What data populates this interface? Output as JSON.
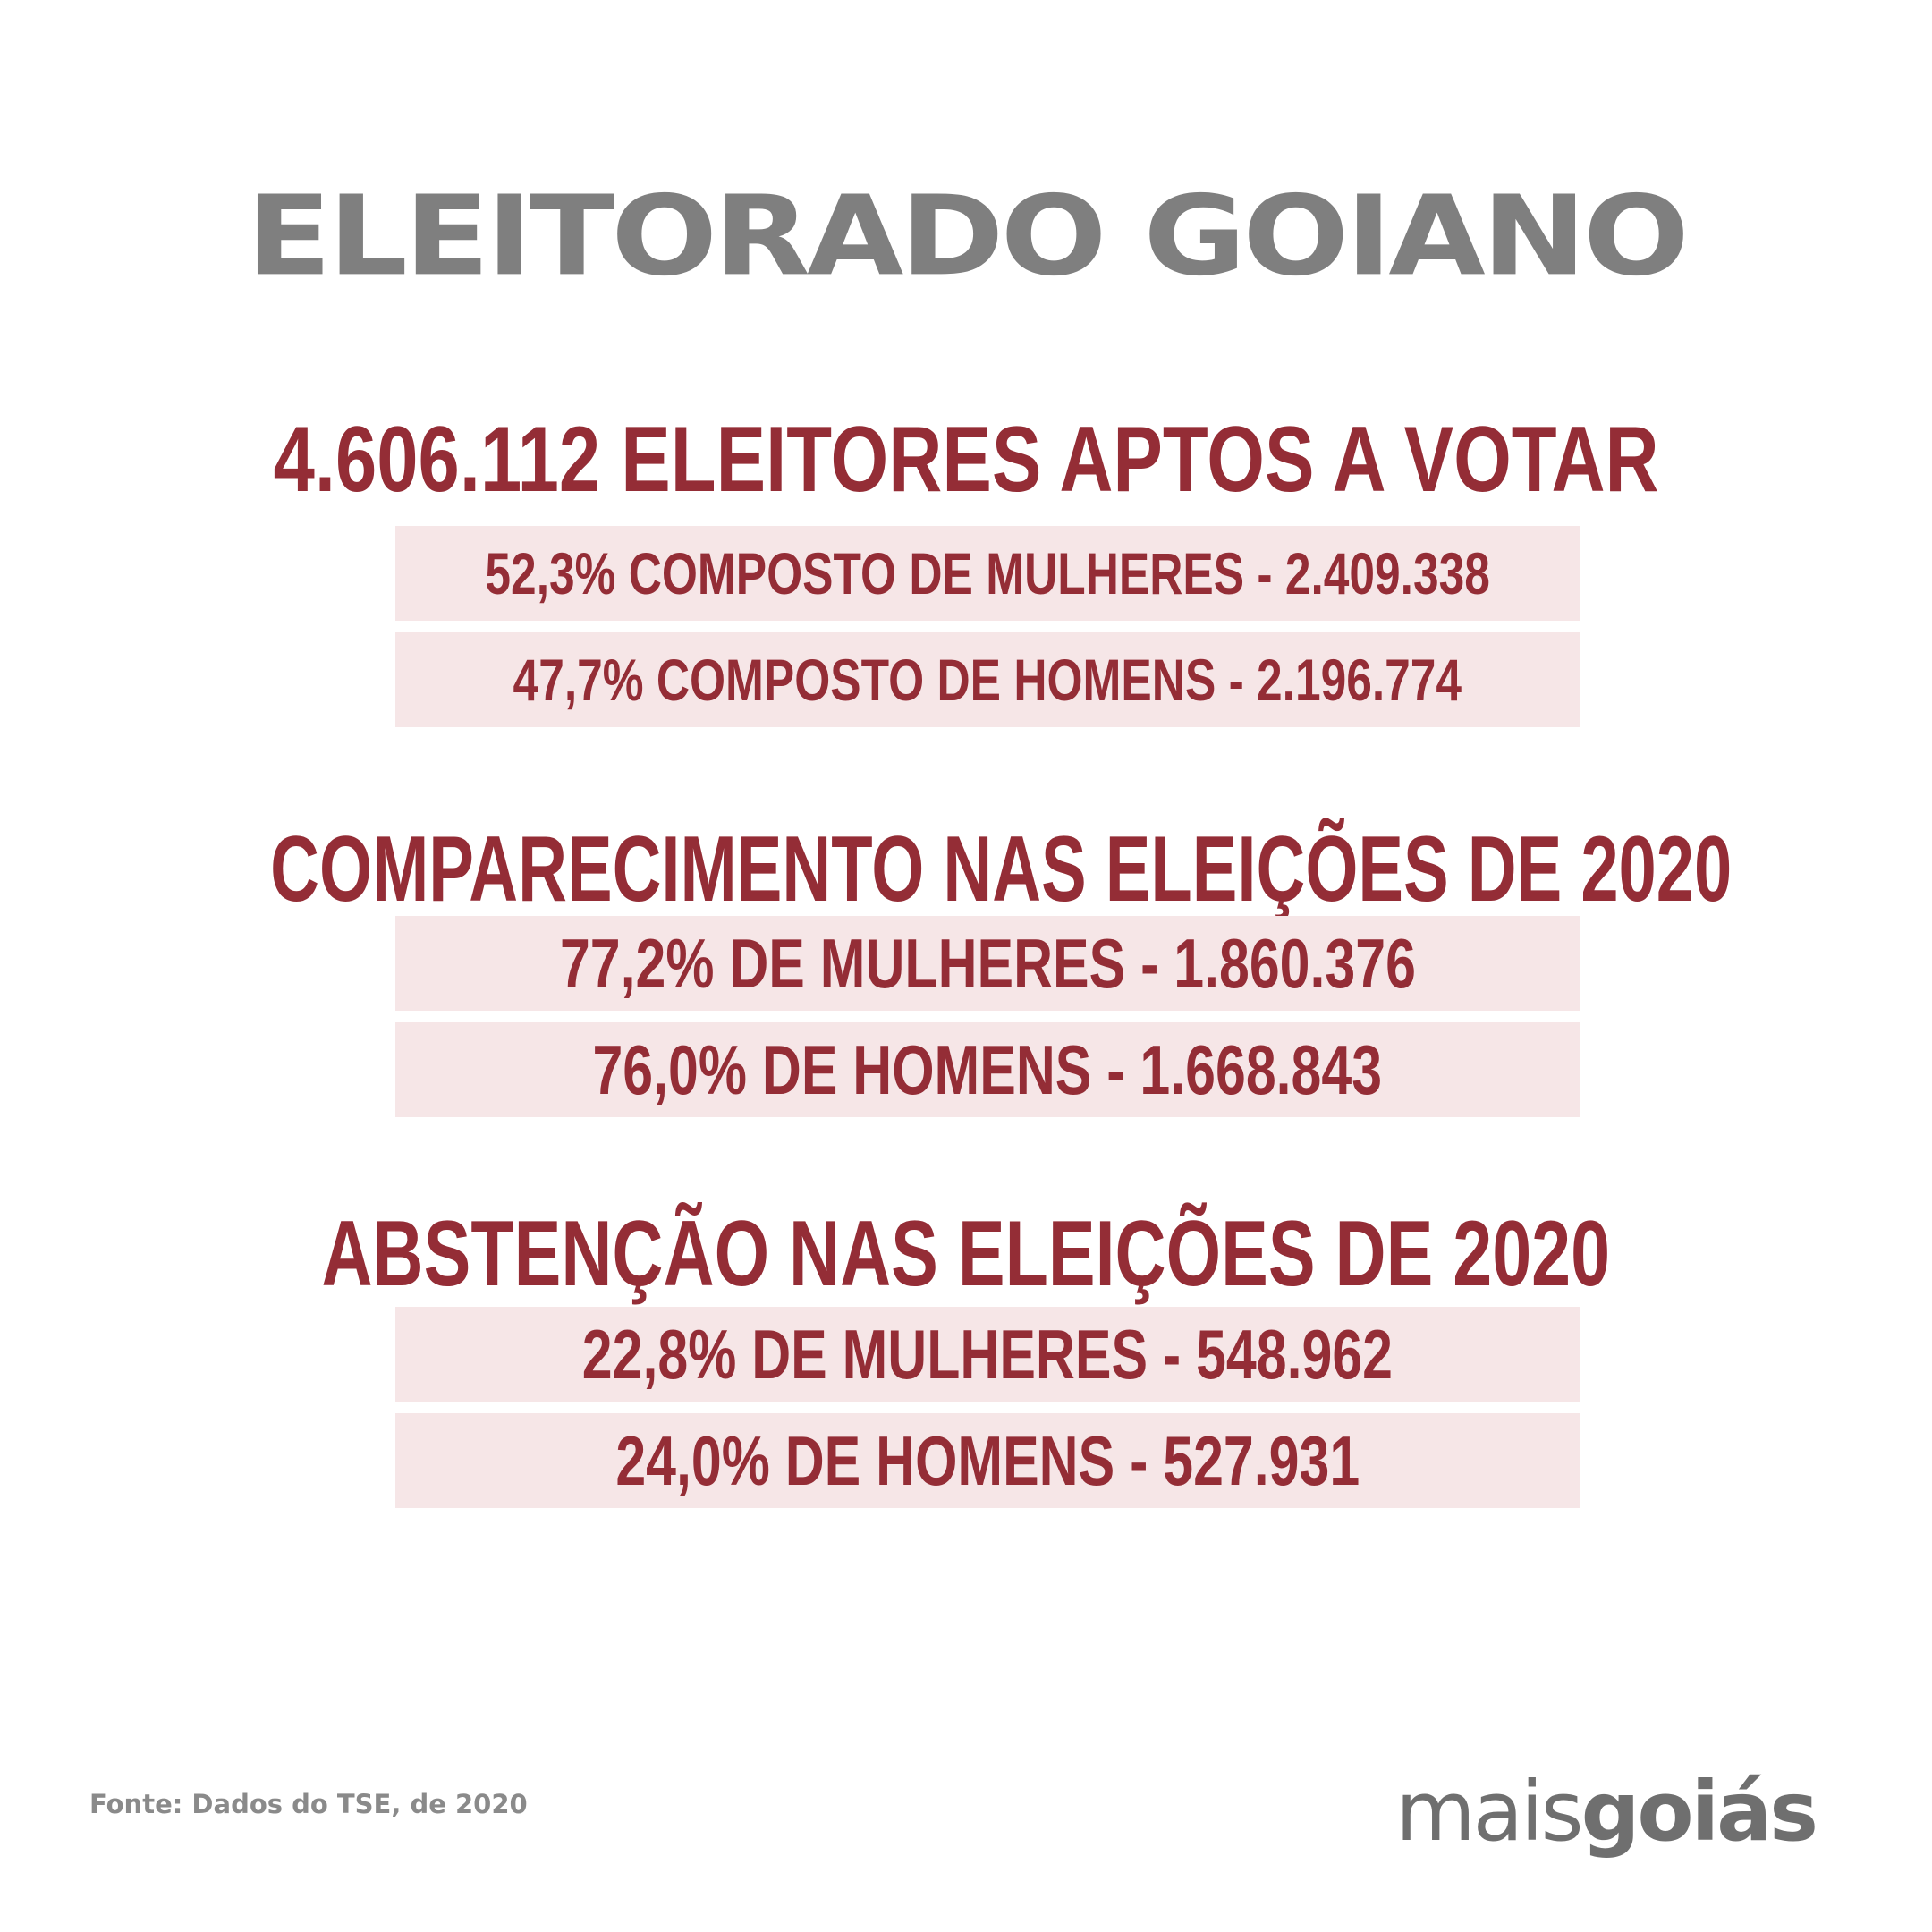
{
  "title": "ELEITORADO GOIANO",
  "section1": {
    "heading": "4.606.112 ELEITORES APTOS A VOTAR",
    "rows": [
      "52,3% COMPOSTO DE MULHERES - 2.409.338",
      "47,7% COMPOSTO DE HOMENS - 2.196.774"
    ]
  },
  "section2": {
    "heading": "COMPARECIMENTO NAS ELEIÇÕES DE 2020",
    "rows": [
      "77,2% DE MULHERES - 1.860.376",
      "76,0% DE HOMENS - 1.668.843"
    ]
  },
  "section3": {
    "heading": "ABSTENÇÃO NAS ELEIÇÕES DE 2020",
    "rows": [
      "22,8% DE MULHERES - 548.962",
      "24,0% DE HOMENS - 527.931"
    ]
  },
  "footer": {
    "source": "Fonte: Dados do TSE, de 2020",
    "logo_part1": "mais",
    "logo_part2": "goiás"
  },
  "colors": {
    "title": "#7f7f7f",
    "accent": "#942d36",
    "row_background": "#f6e6e7",
    "footer_text": "#8a8a8a"
  }
}
